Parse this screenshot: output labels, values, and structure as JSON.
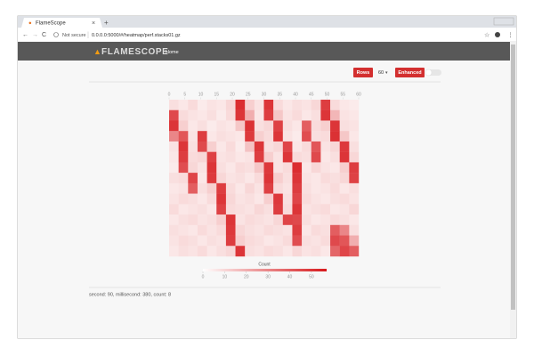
{
  "browser": {
    "tab_title": "FlameScope",
    "url_security": "Not secure",
    "url": "0.0.0.0:5000/#/heatmap/perf.stacks01.gz"
  },
  "nav": {
    "brand": "FLAMESCOPE",
    "links": [
      "Home"
    ]
  },
  "controls": {
    "rows_label": "Rows",
    "rows_value": "60",
    "enhanced_label": "Enhanced"
  },
  "heatmap": {
    "xlim": [
      0,
      60
    ],
    "xticks": [
      0,
      5,
      10,
      15,
      20,
      25,
      30,
      35,
      40,
      45,
      50,
      55,
      60
    ],
    "color": "#d7191c",
    "values": [
      [
        8,
        6,
        9,
        5,
        7,
        6,
        10,
        52,
        12,
        7,
        50,
        9,
        6,
        8,
        7,
        10,
        48,
        9,
        6,
        5
      ],
      [
        45,
        9,
        7,
        6,
        8,
        5,
        9,
        50,
        20,
        6,
        48,
        14,
        7,
        9,
        6,
        8,
        50,
        18,
        7,
        6
      ],
      [
        50,
        12,
        6,
        8,
        5,
        7,
        6,
        14,
        51,
        8,
        10,
        47,
        8,
        6,
        40,
        9,
        12,
        50,
        8,
        7
      ],
      [
        30,
        42,
        7,
        48,
        6,
        8,
        7,
        6,
        49,
        12,
        9,
        50,
        7,
        5,
        44,
        8,
        9,
        51,
        14,
        6
      ],
      [
        7,
        50,
        8,
        45,
        12,
        6,
        9,
        5,
        15,
        50,
        8,
        10,
        46,
        6,
        9,
        42,
        7,
        10,
        49,
        8
      ],
      [
        6,
        48,
        9,
        10,
        47,
        7,
        8,
        6,
        7,
        48,
        12,
        7,
        50,
        9,
        8,
        45,
        6,
        8,
        50,
        10
      ],
      [
        5,
        44,
        10,
        7,
        50,
        8,
        6,
        9,
        8,
        14,
        49,
        7,
        9,
        52,
        6,
        10,
        7,
        6,
        12,
        48
      ],
      [
        8,
        9,
        46,
        6,
        49,
        10,
        7,
        8,
        6,
        9,
        50,
        12,
        8,
        50,
        7,
        6,
        9,
        8,
        10,
        47
      ],
      [
        6,
        7,
        40,
        8,
        12,
        48,
        9,
        6,
        10,
        7,
        47,
        9,
        7,
        48,
        8,
        6,
        7,
        9,
        6,
        8
      ],
      [
        7,
        9,
        8,
        6,
        9,
        50,
        10,
        7,
        8,
        6,
        12,
        49,
        8,
        46,
        9,
        7,
        6,
        8,
        9,
        7
      ],
      [
        9,
        6,
        7,
        8,
        6,
        47,
        9,
        8,
        7,
        10,
        8,
        48,
        9,
        50,
        7,
        8,
        9,
        6,
        7,
        10
      ],
      [
        6,
        8,
        9,
        7,
        8,
        12,
        50,
        7,
        9,
        8,
        7,
        10,
        46,
        45,
        8,
        6,
        7,
        9,
        8,
        6
      ],
      [
        8,
        7,
        6,
        9,
        7,
        9,
        49,
        10,
        8,
        7,
        9,
        8,
        7,
        48,
        6,
        9,
        8,
        40,
        30,
        8
      ],
      [
        7,
        9,
        8,
        6,
        8,
        7,
        48,
        12,
        9,
        8,
        6,
        7,
        9,
        44,
        8,
        7,
        9,
        45,
        42,
        20
      ],
      [
        6,
        8,
        7,
        9,
        6,
        8,
        10,
        50,
        8,
        7,
        9,
        8,
        6,
        10,
        7,
        8,
        6,
        38,
        46,
        40
      ]
    ],
    "legend": {
      "title": "Count",
      "lim": [
        0,
        57
      ],
      "ticks": [
        0,
        10,
        20,
        30,
        40,
        50
      ]
    }
  },
  "status": "second: 90, millisecond: 380, count: 8"
}
